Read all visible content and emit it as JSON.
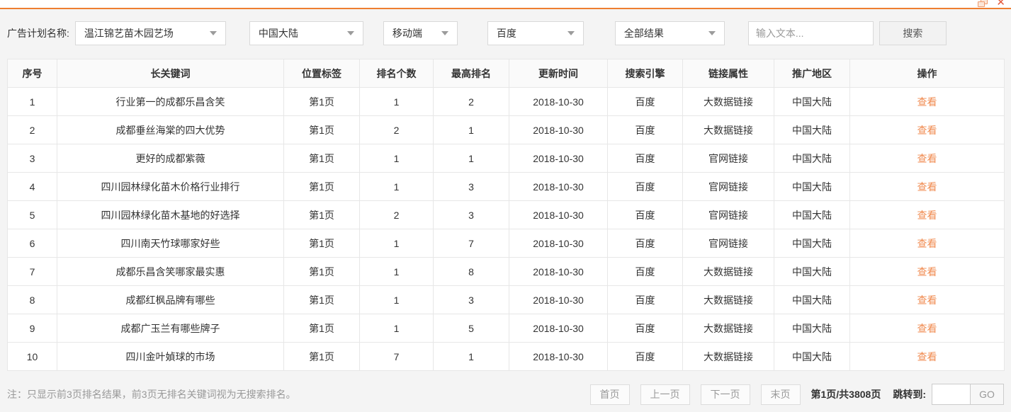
{
  "window": {
    "icons": {
      "restore": "restore-window-icon",
      "close": "close-icon"
    }
  },
  "colors": {
    "accent": "#ee7e31",
    "link": "#f08a4f"
  },
  "filters": {
    "label": "广告计划名称:",
    "dropdowns": [
      {
        "value": "温江锦艺苗木园艺场"
      },
      {
        "value": "中国大陆"
      },
      {
        "value": "移动端"
      },
      {
        "value": "百度"
      },
      {
        "value": "全部结果"
      }
    ],
    "search_input_placeholder": "输入文本...",
    "search_button": "搜索"
  },
  "table": {
    "columns": [
      "序号",
      "长关键词",
      "位置标签",
      "排名个数",
      "最高排名",
      "更新时间",
      "搜索引擎",
      "链接属性",
      "推广地区",
      "操作"
    ],
    "rows": [
      {
        "no": "1",
        "keyword": "行业第一的成都乐昌含笑",
        "position": "第1页",
        "rank_count": "1",
        "top_rank": "2",
        "updated": "2018-10-30",
        "engine": "百度",
        "link_type": "大数据链接",
        "region": "中国大陆",
        "action": "查看"
      },
      {
        "no": "2",
        "keyword": "成都垂丝海棠的四大优势",
        "position": "第1页",
        "rank_count": "2",
        "top_rank": "1",
        "updated": "2018-10-30",
        "engine": "百度",
        "link_type": "大数据链接",
        "region": "中国大陆",
        "action": "查看"
      },
      {
        "no": "3",
        "keyword": "更好的成都紫薇",
        "position": "第1页",
        "rank_count": "1",
        "top_rank": "1",
        "updated": "2018-10-30",
        "engine": "百度",
        "link_type": "官网链接",
        "region": "中国大陆",
        "action": "查看"
      },
      {
        "no": "4",
        "keyword": "四川园林绿化苗木价格行业排行",
        "position": "第1页",
        "rank_count": "1",
        "top_rank": "3",
        "updated": "2018-10-30",
        "engine": "百度",
        "link_type": "官网链接",
        "region": "中国大陆",
        "action": "查看"
      },
      {
        "no": "5",
        "keyword": "四川园林绿化苗木基地的好选择",
        "position": "第1页",
        "rank_count": "2",
        "top_rank": "3",
        "updated": "2018-10-30",
        "engine": "百度",
        "link_type": "官网链接",
        "region": "中国大陆",
        "action": "查看"
      },
      {
        "no": "6",
        "keyword": "四川南天竹球哪家好些",
        "position": "第1页",
        "rank_count": "1",
        "top_rank": "7",
        "updated": "2018-10-30",
        "engine": "百度",
        "link_type": "官网链接",
        "region": "中国大陆",
        "action": "查看"
      },
      {
        "no": "7",
        "keyword": "成都乐昌含笑哪家最实惠",
        "position": "第1页",
        "rank_count": "1",
        "top_rank": "8",
        "updated": "2018-10-30",
        "engine": "百度",
        "link_type": "大数据链接",
        "region": "中国大陆",
        "action": "查看"
      },
      {
        "no": "8",
        "keyword": "成都红枫品牌有哪些",
        "position": "第1页",
        "rank_count": "1",
        "top_rank": "3",
        "updated": "2018-10-30",
        "engine": "百度",
        "link_type": "大数据链接",
        "region": "中国大陆",
        "action": "查看"
      },
      {
        "no": "9",
        "keyword": "成都广玉兰有哪些牌子",
        "position": "第1页",
        "rank_count": "1",
        "top_rank": "5",
        "updated": "2018-10-30",
        "engine": "百度",
        "link_type": "大数据链接",
        "region": "中国大陆",
        "action": "查看"
      },
      {
        "no": "10",
        "keyword": "四川金叶媜球的市场",
        "position": "第1页",
        "rank_count": "7",
        "top_rank": "1",
        "updated": "2018-10-30",
        "engine": "百度",
        "link_type": "大数据链接",
        "region": "中国大陆",
        "action": "查看"
      }
    ]
  },
  "footer": {
    "note": "注：只显示前3页排名结果，前3页无排名关键词视为无搜索排名。",
    "pagination": {
      "first": "首页",
      "prev": "上一页",
      "next": "下一页",
      "last": "末页",
      "page_info": "第1页/共3808页",
      "jump_label": "跳转到:",
      "jump_value": "",
      "go": "GO"
    }
  }
}
